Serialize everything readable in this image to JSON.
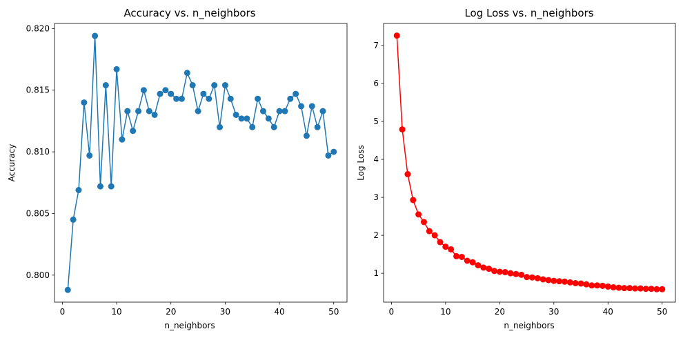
{
  "chart_data": [
    {
      "type": "line",
      "title": "Accuracy vs. n_neighbors",
      "xlabel": "n_neighbors",
      "ylabel": "Accuracy",
      "xlim": [
        -1.45,
        52.45
      ],
      "ylim": [
        0.79781,
        0.82041
      ],
      "xticks": [
        0,
        10,
        20,
        30,
        40,
        50
      ],
      "yticks": [
        0.8,
        0.805,
        0.81,
        0.815,
        0.82
      ],
      "ytick_labels": [
        "0.800",
        "0.805",
        "0.810",
        "0.815",
        "0.820"
      ],
      "grid": false,
      "color": "#1f77b4",
      "marker": "circle",
      "x": [
        1,
        2,
        3,
        4,
        5,
        6,
        7,
        8,
        9,
        10,
        11,
        12,
        13,
        14,
        15,
        16,
        17,
        18,
        19,
        20,
        21,
        22,
        23,
        24,
        25,
        26,
        27,
        28,
        29,
        30,
        31,
        32,
        33,
        34,
        35,
        36,
        37,
        38,
        39,
        40,
        41,
        42,
        43,
        44,
        45,
        46,
        47,
        48,
        49,
        50
      ],
      "y": [
        0.7988,
        0.8045,
        0.8069,
        0.814,
        0.8097,
        0.8194,
        0.8072,
        0.8154,
        0.8072,
        0.8167,
        0.811,
        0.8133,
        0.8117,
        0.8133,
        0.815,
        0.8133,
        0.813,
        0.8147,
        0.815,
        0.8147,
        0.8143,
        0.8143,
        0.8164,
        0.8154,
        0.8133,
        0.8147,
        0.8143,
        0.8154,
        0.812,
        0.8154,
        0.8143,
        0.813,
        0.8127,
        0.8127,
        0.812,
        0.8143,
        0.8133,
        0.8127,
        0.812,
        0.8133,
        0.8133,
        0.8143,
        0.8147,
        0.8137,
        0.8113,
        0.8137,
        0.812,
        0.8133,
        0.8097,
        0.81
      ]
    },
    {
      "type": "line",
      "title": "Log Loss vs. n_neighbors",
      "xlabel": "n_neighbors",
      "ylabel": "Log Loss",
      "xlim": [
        -1.45,
        52.45
      ],
      "ylim": [
        0.24,
        7.58
      ],
      "xticks": [
        0,
        10,
        20,
        30,
        40,
        50
      ],
      "yticks": [
        1,
        2,
        3,
        4,
        5,
        6,
        7
      ],
      "ytick_labels": [
        "1",
        "2",
        "3",
        "4",
        "5",
        "6",
        "7"
      ],
      "grid": false,
      "color": "#ff0000",
      "marker": "circle",
      "x": [
        1,
        2,
        3,
        4,
        5,
        6,
        7,
        8,
        9,
        10,
        11,
        12,
        13,
        14,
        15,
        16,
        17,
        18,
        19,
        20,
        21,
        22,
        23,
        24,
        25,
        26,
        27,
        28,
        29,
        30,
        31,
        32,
        33,
        34,
        35,
        36,
        37,
        38,
        39,
        40,
        41,
        42,
        43,
        44,
        45,
        46,
        47,
        48,
        49,
        50
      ],
      "y": [
        7.26,
        4.79,
        3.61,
        2.93,
        2.55,
        2.35,
        2.11,
        2.0,
        1.82,
        1.7,
        1.63,
        1.45,
        1.43,
        1.33,
        1.29,
        1.21,
        1.15,
        1.12,
        1.06,
        1.04,
        1.03,
        1.0,
        0.98,
        0.96,
        0.9,
        0.89,
        0.87,
        0.84,
        0.82,
        0.8,
        0.79,
        0.78,
        0.76,
        0.74,
        0.73,
        0.71,
        0.68,
        0.68,
        0.67,
        0.65,
        0.63,
        0.62,
        0.61,
        0.61,
        0.6,
        0.6,
        0.59,
        0.59,
        0.58,
        0.58
      ]
    }
  ]
}
